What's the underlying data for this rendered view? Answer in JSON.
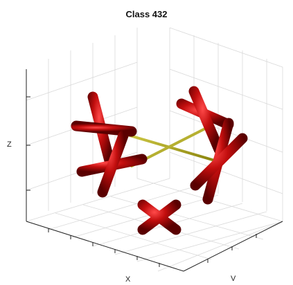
{
  "chart_data": {
    "type": "3d-symmetry-diagram",
    "title": "Class 432",
    "xlabel": "X",
    "ylabel": "V",
    "zlabel": "Z",
    "grid": true,
    "axis_color": "#b7b01a",
    "glyph_color": "#c40f0f",
    "elements": [
      {
        "name": "4-fold",
        "axis": "z",
        "count": 2
      },
      {
        "name": "4-fold",
        "axis": "x",
        "count": 2
      },
      {
        "name": "4-fold",
        "axis": "y",
        "count": 2
      }
    ]
  }
}
